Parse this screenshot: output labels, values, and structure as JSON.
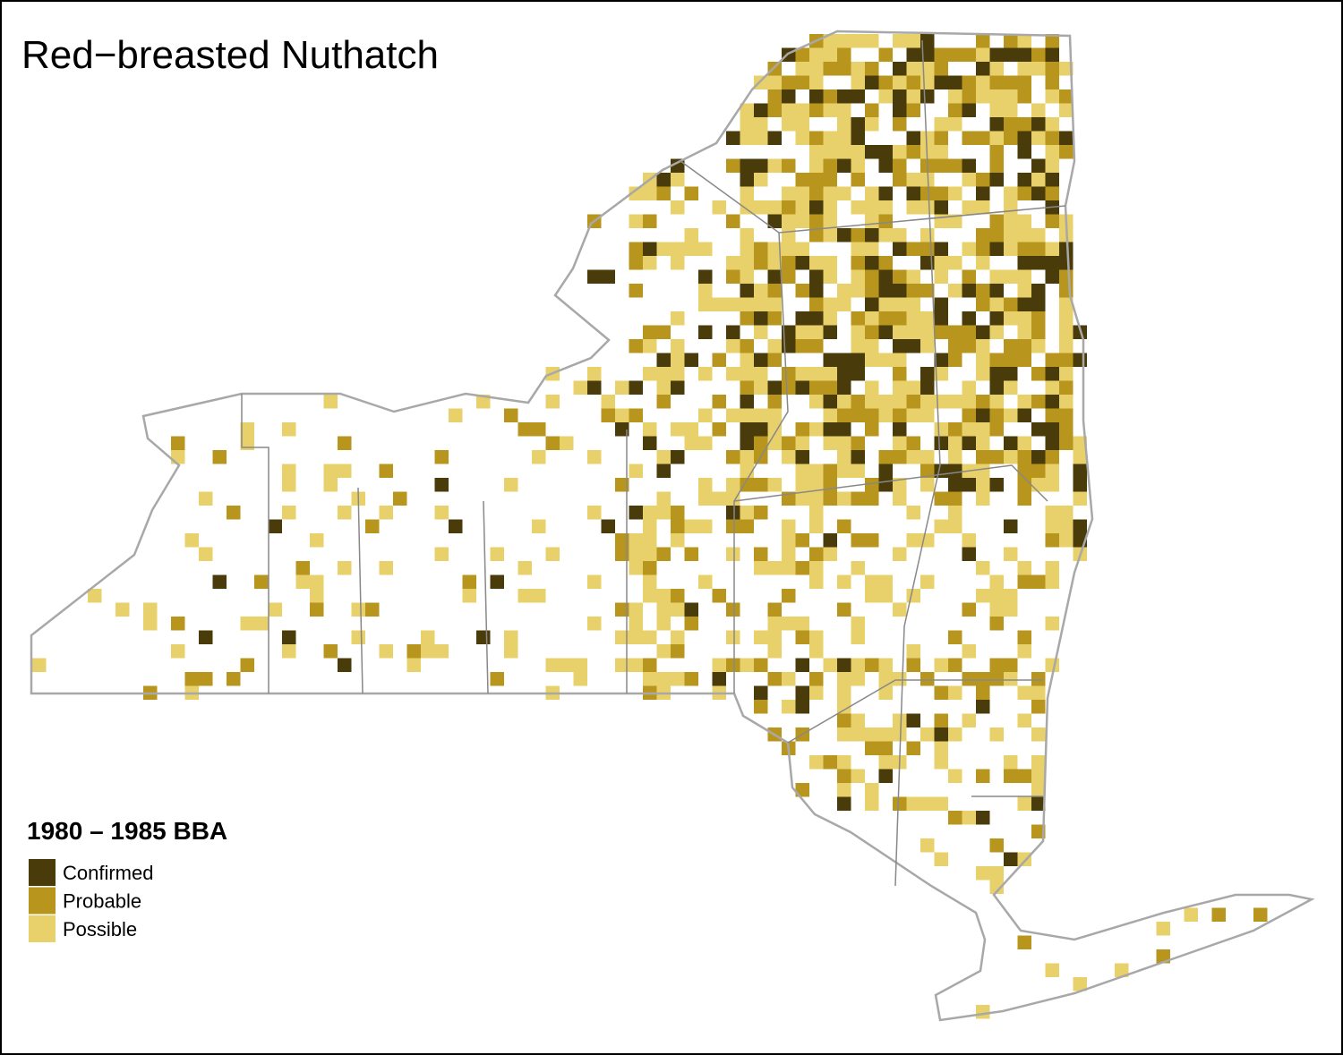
{
  "title": "Red−breasted Nuthatch",
  "legend": {
    "title": "1980 – 1985 BBA",
    "items": [
      {
        "label": "Confirmed",
        "color": "#4a3c0a"
      },
      {
        "label": "Probable",
        "color": "#b8961e"
      },
      {
        "label": "Possible",
        "color": "#e8d06a"
      }
    ]
  }
}
